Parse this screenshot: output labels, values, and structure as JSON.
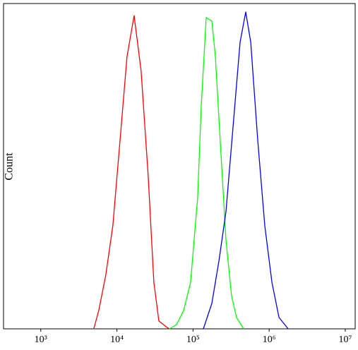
{
  "chart_data": {
    "type": "line",
    "y_label": "Count",
    "log_x": true,
    "grid": false,
    "xlim": [
      324,
      13500000
    ],
    "ylim": [
      0,
      100
    ],
    "xticks": [
      {
        "value": 1000,
        "label": "10³"
      },
      {
        "value": 10000,
        "label": "10⁴"
      },
      {
        "value": 100000,
        "label": "10⁵"
      },
      {
        "value": 1000000,
        "label": "10⁶"
      },
      {
        "value": 10000000,
        "label": "10⁷"
      }
    ],
    "series": [
      {
        "color": "#ff0000",
        "x": [
          4970,
          5770,
          7140,
          8850,
          10970,
          13590,
          16830,
          20800,
          25780,
          30600,
          35560,
          43950,
          48980
        ],
        "values": [
          0,
          5.6,
          16.5,
          31.7,
          57.7,
          83.7,
          96.3,
          79.4,
          46.9,
          14.3,
          2.4,
          0.7,
          0
        ]
      },
      {
        "color": "#00ff00",
        "x": [
          48980,
          60650,
          75100,
          92900,
          115100,
          128200,
          148900,
          176600,
          196400,
          228000,
          270800,
          321500,
          373300,
          462500
        ],
        "values": [
          0,
          1.3,
          5.6,
          14.3,
          40.3,
          68.5,
          95.7,
          94.6,
          83.7,
          57.7,
          27.3,
          10.0,
          3.5,
          0
        ]
      },
      {
        "color": "#0000ff",
        "x": [
          136800,
          176600,
          218600,
          270800,
          335400,
          415000,
          493000,
          573000,
          709800,
          877600,
          1087000,
          1346000,
          1778000
        ],
        "values": [
          0,
          7.8,
          20.8,
          36.0,
          62.0,
          88.1,
          97.4,
          88.1,
          57.7,
          31.7,
          14.3,
          3.5,
          0
        ]
      }
    ]
  }
}
